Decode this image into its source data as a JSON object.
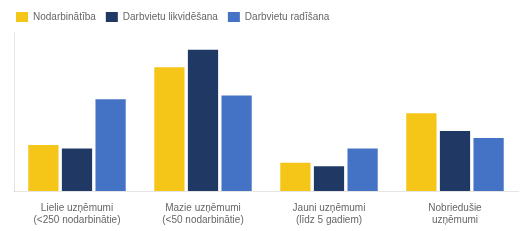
{
  "chart_data": {
    "type": "bar",
    "categories": [
      "Lielie uzņēmumi\n(<250 nodarbinātie)",
      "Mazie uzņēmumi\n(<50 nodarbinātie)",
      "Jauni uzņēmumi\n(līdz 5 gadiem)",
      "Nobriedušie\nuzņēmumi"
    ],
    "series": [
      {
        "name": "Nodarbinātība",
        "color": "#F5C518",
        "values": [
          13,
          35,
          8,
          22
        ]
      },
      {
        "name": "Darbvietu likvidēšana",
        "color": "#1F3864",
        "values": [
          12,
          40,
          7,
          17
        ]
      },
      {
        "name": "Darbvietu radīšana",
        "color": "#4472C4",
        "values": [
          26,
          27,
          12,
          15
        ]
      }
    ],
    "ylim": [
      0,
      45
    ],
    "grid": false,
    "legend": "upper left",
    "tick_labels": "x"
  }
}
